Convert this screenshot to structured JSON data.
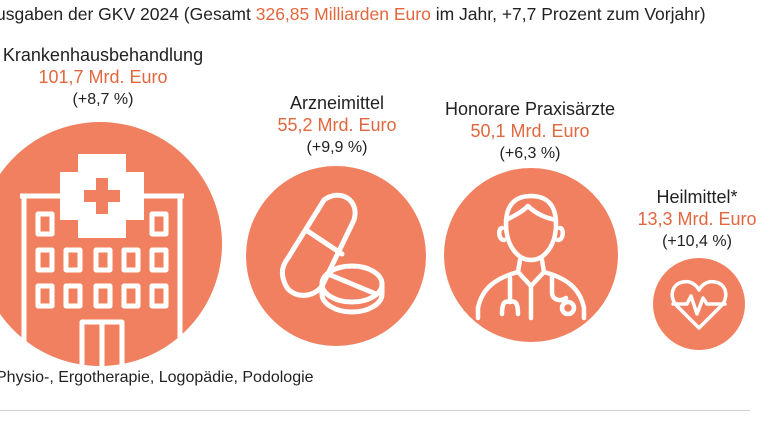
{
  "title": {
    "prefix": "usgaben der GKV 2024 (Gesamt ",
    "highlight": "326,85 Milliarden Euro",
    "suffix": " im Jahr, +7,7 Prozent zum Vorjahr)"
  },
  "items": [
    {
      "label": "Krankenhausbehandlung",
      "amount": "101,7 Mrd. Euro",
      "change": "(+8,7 %)",
      "icon": "hospital-icon"
    },
    {
      "label": "Arzneimittel",
      "amount": "55,2 Mrd. Euro",
      "change": "(+9,9 %)",
      "icon": "pills-icon"
    },
    {
      "label": "Honorare Praxisärzte",
      "amount": "50,1 Mrd. Euro",
      "change": "(+6,3 %)",
      "icon": "doctor-icon"
    },
    {
      "label": "Heilmittel*",
      "amount": "13,3 Mrd. Euro",
      "change": "(+10,4 %)",
      "icon": "heart-pulse-icon"
    }
  ],
  "footnote": "Physio-, Ergotherapie, Logopädie, Podologie",
  "colors": {
    "accent": "#e2673f",
    "circle": "#f0805f"
  }
}
